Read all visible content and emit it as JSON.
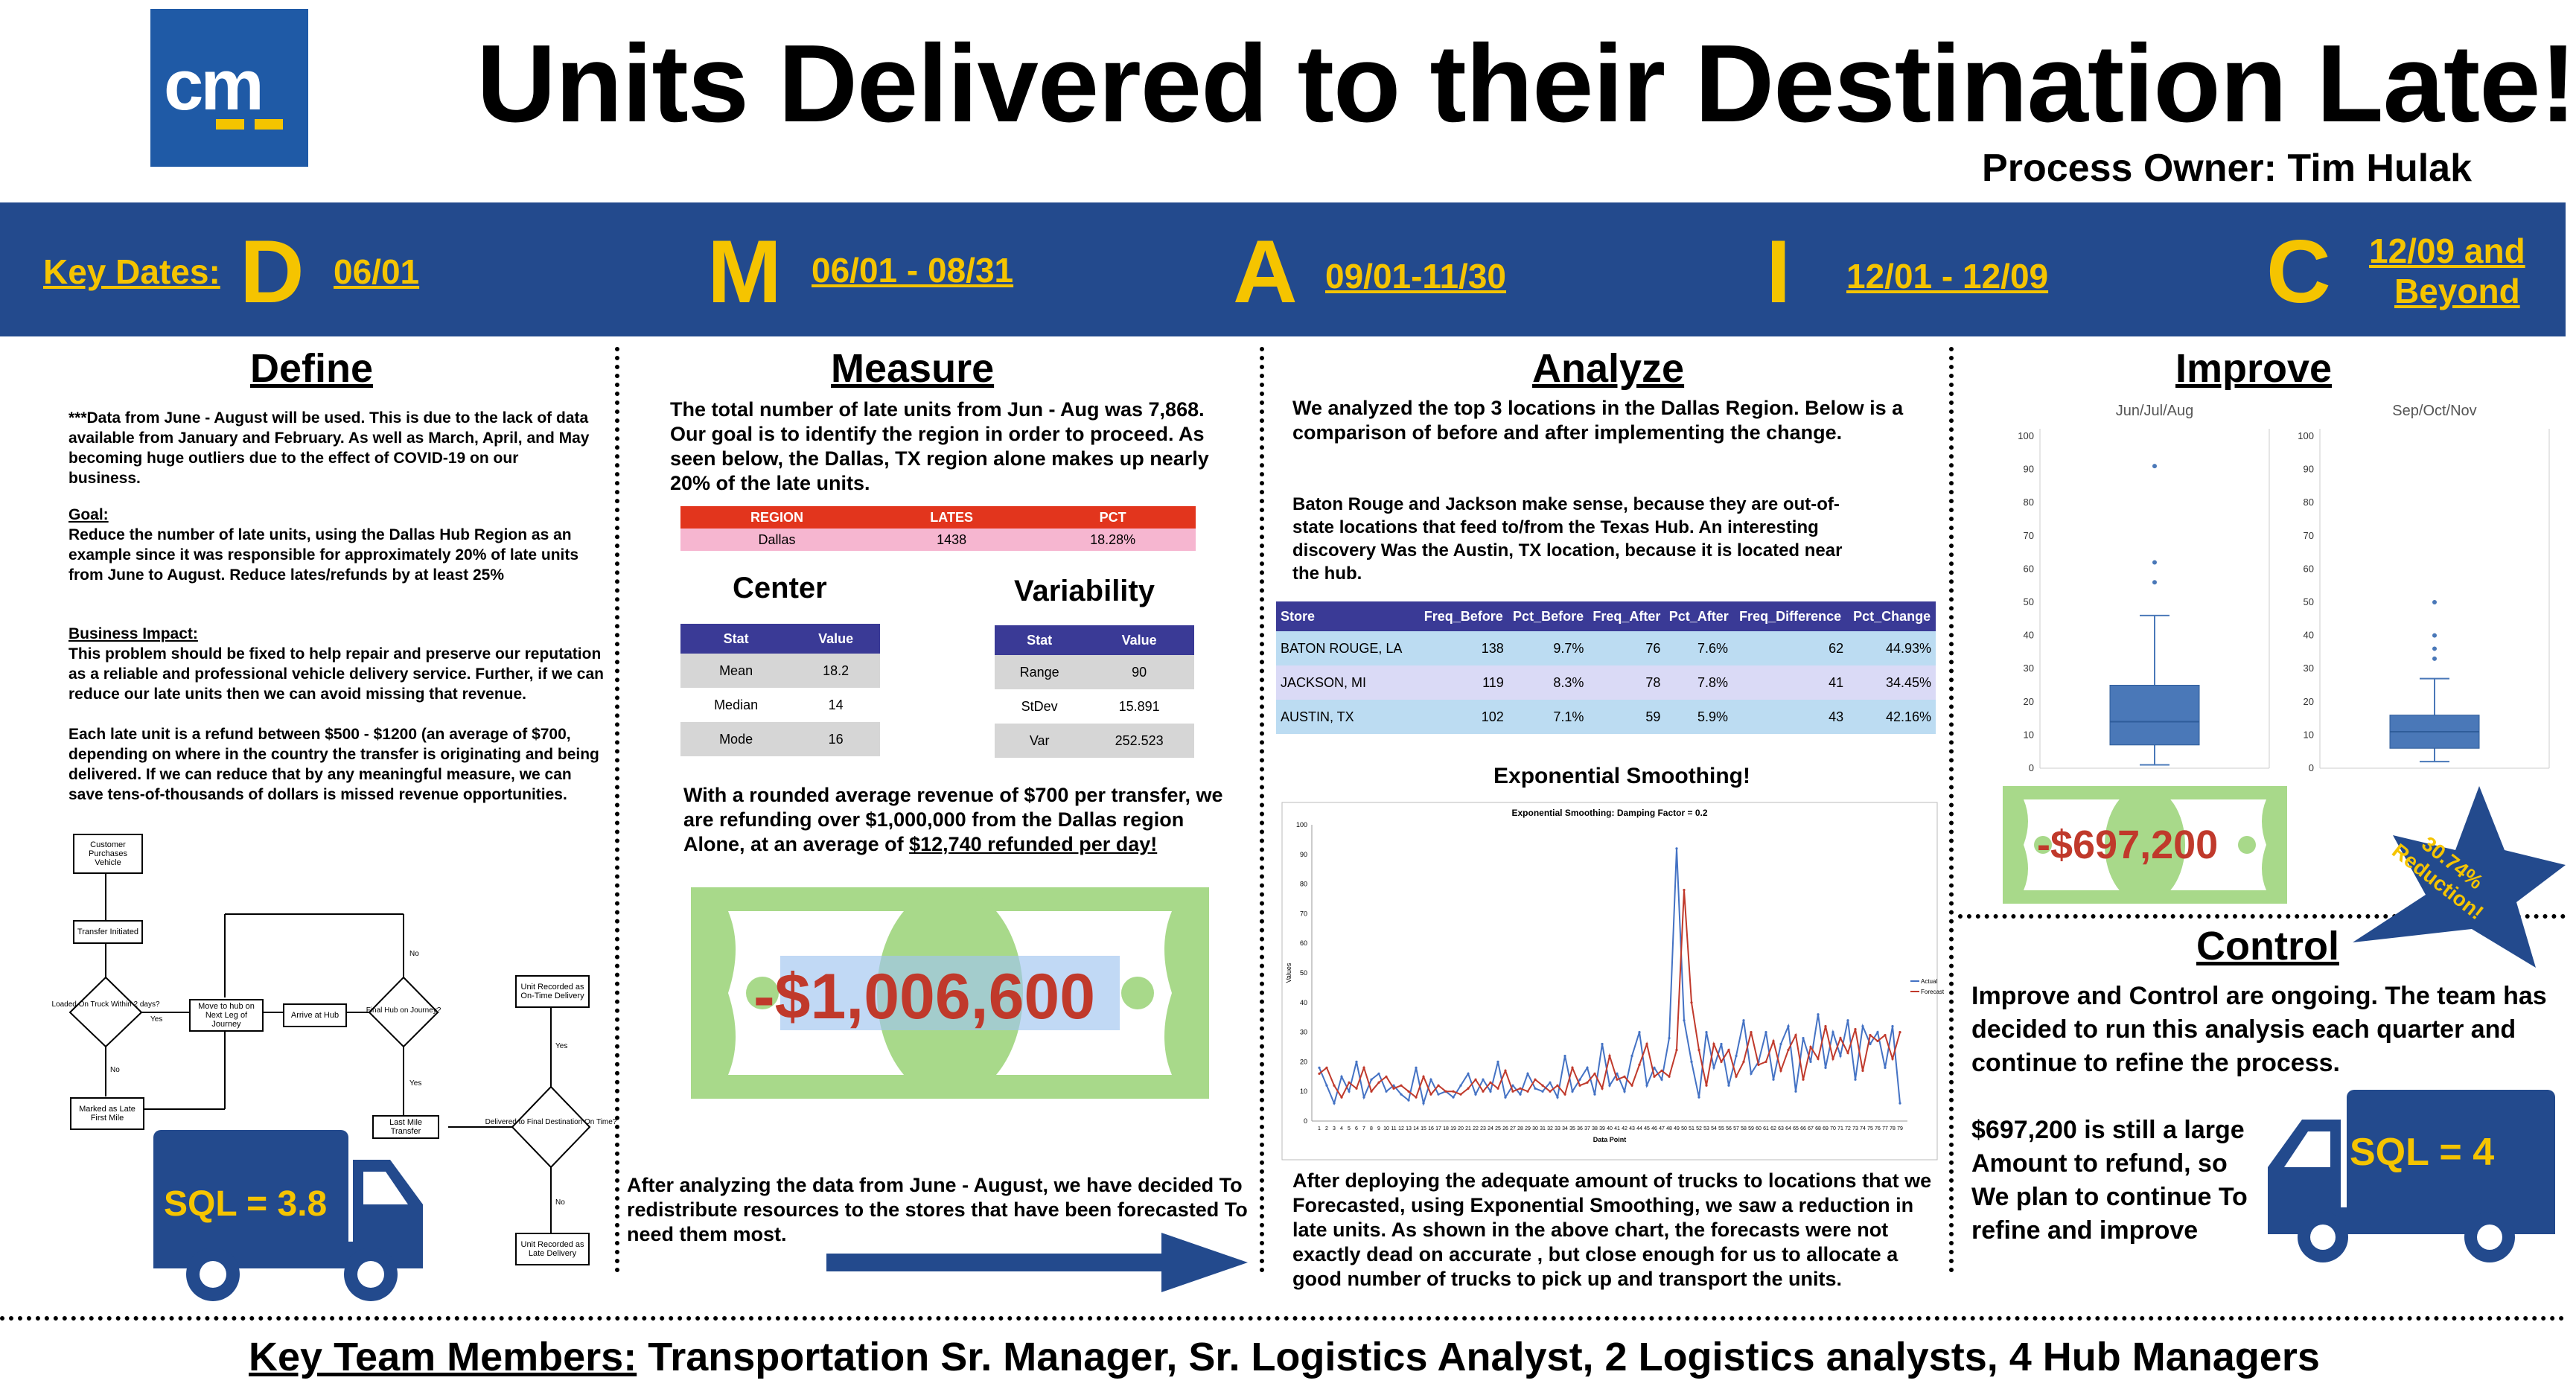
{
  "header": {
    "logo_text": "cm",
    "title": "Units Delivered to their Destination Late!",
    "process_owner": "Process Owner: Tim Hulak"
  },
  "key_dates": {
    "label": "Key Dates:",
    "phases": [
      {
        "letter": "D",
        "dates": "06/01"
      },
      {
        "letter": "M",
        "dates": "06/01 - 08/31"
      },
      {
        "letter": "A",
        "dates": "09/01-11/30"
      },
      {
        "letter": "I",
        "dates": "12/01 - 12/09"
      },
      {
        "letter": "C",
        "dates_line1": "12/09  and",
        "dates_line2": "Beyond"
      }
    ]
  },
  "define": {
    "heading": "Define",
    "para1": "***Data from June - August will be used. This is due to the lack of data available from January  and February. As well as March, April, and May  becoming huge outliers due to the effect of COVID-19 on our business.",
    "goal_label": "Goal:",
    "goal_text": "Reduce the number of late units, using the Dallas Hub Region as an example since it was responsible for approximately 20% of late units from June to August. Reduce lates/refunds  by at least 25%",
    "impact_label": "Business Impact:",
    "impact_text": "This problem should be fixed to help repair and preserve our reputation  as a reliable and professional vehicle delivery service. Further, if we can reduce our late units then we can avoid missing that revenue.",
    "para4": "Each late unit is a refund between $500 - $1200 (an average of $700, depending on where in the country the transfer is originating and being delivered. If we can reduce that by any meaningful measure, we can save tens-of-thousands of dollars is missed revenue opportunities.",
    "flow": {
      "n1": "Customer Purchases Vehicle",
      "n2": "Transfer Initiated",
      "n3": "Loaded On Truck Within 2 days?",
      "n4": "Move to hub on Next Leg of Journey",
      "n5": "Arrive at Hub",
      "n6": "Final Hub on Journey?",
      "n7": "Marked as Late First Mile",
      "n8": "Last Mile Transfer",
      "n9": "Unit Recorded as On-Time Delivery",
      "n10": "Delivered to Final Destination On Time?",
      "n11": "Unit Recorded as Late Delivery",
      "yes": "Yes",
      "no": "No"
    },
    "sql": "SQL = 3.8"
  },
  "measure": {
    "heading": "Measure",
    "intro": "The total number of late units from Jun - Aug was 7,868. Our goal is to identify the region in order to proceed. As seen below, the Dallas, TX region alone makes up nearly 20% of the late units.",
    "region_table": {
      "headers": [
        "REGION",
        "LATES",
        "PCT"
      ],
      "row": [
        "Dallas",
        "1438",
        "18.28%"
      ]
    },
    "center_title": "Center",
    "center_table": {
      "headers": [
        "Stat",
        "Value"
      ],
      "rows": [
        [
          "Mean",
          "18.2"
        ],
        [
          "Median",
          "14"
        ],
        [
          "Mode",
          "16"
        ]
      ]
    },
    "variability_title": "Variability",
    "variability_table": {
      "headers": [
        "Stat",
        "Value"
      ],
      "rows": [
        [
          "Range",
          "90"
        ],
        [
          "StDev",
          "15.891"
        ],
        [
          "Var",
          "252.523"
        ]
      ]
    },
    "refund_text_1": "With a rounded average revenue of $700 per transfer, we are refunding  over $1,000,000 from the Dallas region Alone, at an average of ",
    "refund_text_2": "$12,740 refunded per day!",
    "bill_amount": "-$1,006,600",
    "conclusion": "After analyzing the data from June - August, we have decided To redistribute resources to the stores that have been forecasted To need them most."
  },
  "analyze": {
    "heading": "Analyze",
    "intro": "We analyzed the top 3 locations in the Dallas Region. Below is a comparison of before and after implementing the change.",
    "para2": "Baton Rouge and Jackson make sense, because they are out-of-state locations that feed to/from the Texas Hub. An interesting discovery Was the Austin, TX location, because it is located near the hub.",
    "store_table": {
      "headers": [
        "Store",
        "Freq_Before",
        "Pct_Before",
        "Freq_After",
        "Pct_After",
        "Freq_Difference",
        "Pct_Change"
      ],
      "rows": [
        [
          "BATON ROUGE, LA",
          "138",
          "9.7%",
          "76",
          "7.6%",
          "62",
          "44.93%"
        ],
        [
          "JACKSON, MI",
          "119",
          "8.3%",
          "78",
          "7.8%",
          "41",
          "34.45%"
        ],
        [
          "AUSTIN, TX",
          "102",
          "7.1%",
          "59",
          "5.9%",
          "43",
          "42.16%"
        ]
      ]
    },
    "es_heading": "Exponential Smoothing!",
    "conclusion": "After deploying the adequate amount of trucks to locations that we Forecasted, using Exponential Smoothing, we saw a reduction in late units. As shown in the above chart, the forecasts were not exactly dead on accurate , but close enough for us to allocate a good number of trucks to pick up and transport the units."
  },
  "improve": {
    "heading": "Improve",
    "bill_amount": "-$697,200",
    "star_text": "30.74% Reduction!"
  },
  "control": {
    "heading": "Control",
    "para1": "Improve and Control are ongoing. The team has decided to run this analysis each quarter and continue to refine the process.",
    "para2": "$697,200 is still a large Amount to refund, so We plan to continue To refine and improve",
    "sql": "SQL = 4"
  },
  "footer": {
    "label": "Key Team Members:",
    "members": " Transportation Sr. Manager, Sr. Logistics Analyst, 2 Logistics analysts, 4 Hub Managers"
  },
  "chart_data": [
    {
      "type": "line",
      "title": "Exponential Smoothing: Damping Factor = 0.2",
      "xlabel": "Data Point",
      "ylabel": "Values",
      "ylim": [
        0,
        100
      ],
      "y_ticks": [
        0,
        10,
        20,
        30,
        40,
        50,
        60,
        70,
        80,
        90,
        100
      ],
      "legend_position": "right",
      "x": [
        1,
        2,
        3,
        4,
        5,
        6,
        7,
        8,
        9,
        10,
        11,
        12,
        13,
        14,
        15,
        16,
        17,
        18,
        19,
        20,
        21,
        22,
        23,
        24,
        25,
        26,
        27,
        28,
        29,
        30,
        31,
        32,
        33,
        34,
        35,
        36,
        37,
        38,
        39,
        40,
        41,
        42,
        43,
        44,
        45,
        46,
        47,
        48,
        49,
        50,
        51,
        52,
        53,
        54,
        55,
        56,
        57,
        58,
        59,
        60,
        61,
        62,
        63,
        64,
        65,
        66,
        67,
        68,
        69,
        70,
        71,
        72,
        73,
        74,
        75,
        76,
        77,
        78,
        79
      ],
      "series": [
        {
          "name": "Actual",
          "color": "#4472c4",
          "values": [
            18,
            12,
            6,
            15,
            10,
            20,
            8,
            14,
            16,
            10,
            12,
            9,
            7,
            18,
            6,
            14,
            9,
            10,
            8,
            12,
            16,
            9,
            14,
            10,
            20,
            8,
            12,
            9,
            16,
            11,
            10,
            13,
            8,
            22,
            10,
            14,
            18,
            9,
            26,
            12,
            16,
            10,
            22,
            30,
            12,
            18,
            14,
            28,
            92,
            34,
            20,
            8,
            30,
            18,
            26,
            12,
            22,
            34,
            16,
            20,
            30,
            14,
            26,
            32,
            10,
            28,
            20,
            36,
            18,
            30,
            22,
            34,
            14,
            32,
            26,
            30,
            18,
            32,
            6
          ]
        },
        {
          "name": "Forecast",
          "color": "#c0392b",
          "values": [
            16,
            18,
            12,
            8,
            13,
            11,
            18,
            10,
            13,
            15,
            11,
            12,
            10,
            8,
            15,
            9,
            12,
            10,
            10,
            9,
            11,
            14,
            10,
            13,
            11,
            17,
            10,
            11,
            10,
            14,
            12,
            10,
            12,
            9,
            18,
            12,
            13,
            16,
            11,
            22,
            14,
            15,
            12,
            19,
            26,
            15,
            17,
            15,
            24,
            78,
            40,
            24,
            12,
            26,
            20,
            24,
            15,
            20,
            30,
            19,
            20,
            27,
            17,
            24,
            29,
            14,
            25,
            21,
            32,
            21,
            28,
            23,
            31,
            17,
            29,
            27,
            29,
            21,
            30
          ]
        }
      ]
    },
    {
      "type": "boxplot",
      "title": "Jun/Jul/Aug",
      "ylim": [
        0,
        100
      ],
      "y_ticks": [
        0,
        10,
        20,
        30,
        40,
        50,
        60,
        70,
        80,
        90,
        100
      ],
      "min": 1,
      "q1": 7,
      "median": 14,
      "q3": 25,
      "max": 46,
      "outliers": [
        56,
        62,
        91
      ]
    },
    {
      "type": "boxplot",
      "title": "Sep/Oct/Nov",
      "ylim": [
        0,
        100
      ],
      "y_ticks": [
        0,
        10,
        20,
        30,
        40,
        50,
        60,
        70,
        80,
        90,
        100
      ],
      "min": 2,
      "q1": 6,
      "median": 11,
      "q3": 16,
      "max": 27,
      "outliers": [
        33,
        36,
        40,
        50
      ]
    }
  ]
}
